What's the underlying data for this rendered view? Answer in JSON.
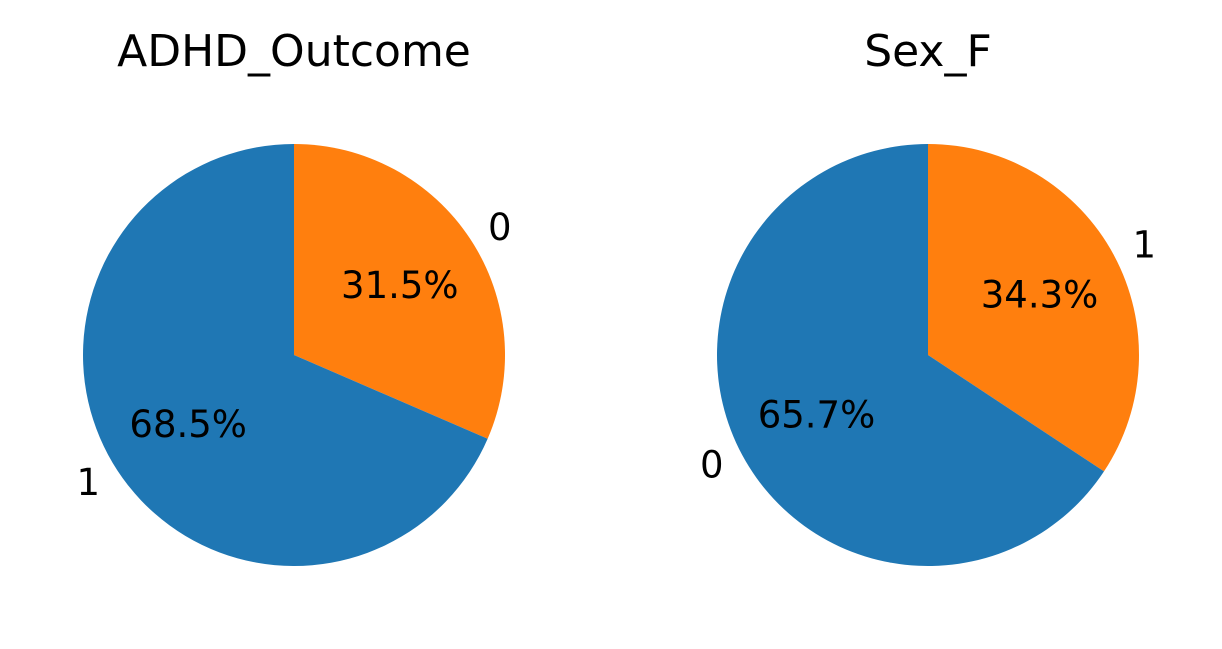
{
  "chart_data": [
    {
      "type": "pie",
      "title": "ADHD_Outcome",
      "slices": [
        {
          "label": "0",
          "value": 31.5,
          "pct_label": "31.5%",
          "color": "#ff7f0e"
        },
        {
          "label": "1",
          "value": 68.5,
          "pct_label": "68.5%",
          "color": "#1f77b4"
        }
      ],
      "start_angle": "top",
      "direction": "clockwise"
    },
    {
      "type": "pie",
      "title": "Sex_F",
      "slices": [
        {
          "label": "1",
          "value": 34.3,
          "pct_label": "34.3%",
          "color": "#ff7f0e"
        },
        {
          "label": "0",
          "value": 65.7,
          "pct_label": "65.7%",
          "color": "#1f77b4"
        }
      ],
      "start_angle": "top",
      "direction": "clockwise"
    }
  ]
}
